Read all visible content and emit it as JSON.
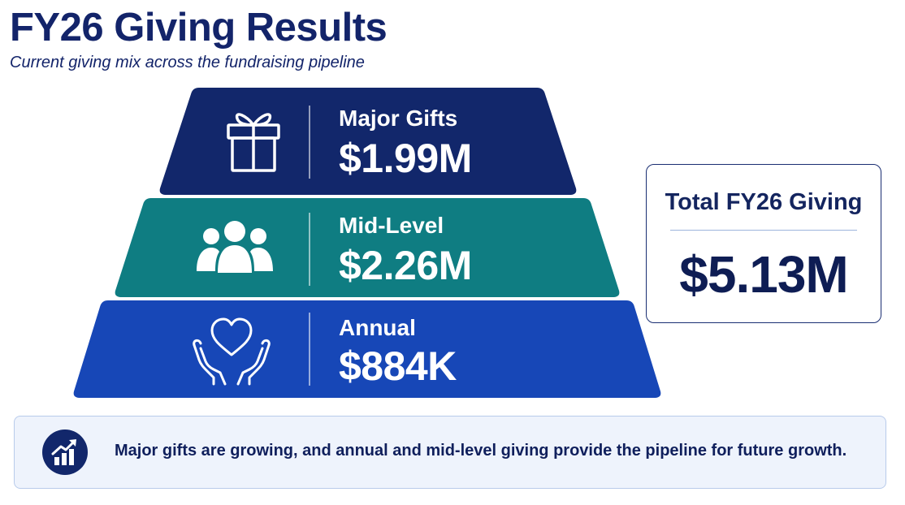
{
  "header": {
    "title": "FY26 Giving Results",
    "subtitle": "Current giving mix across the fundraising pipeline"
  },
  "pyramid": {
    "tiers": [
      {
        "label": "Major Gifts",
        "value": "$1.99M",
        "icon": "gift-icon",
        "color": "#12276b"
      },
      {
        "label": "Mid-Level",
        "value": "$2.26M",
        "icon": "people-icon",
        "color": "#0f7d82"
      },
      {
        "label": "Annual",
        "value": "$884K",
        "icon": "heart-hands-icon",
        "color": "#1747b7"
      }
    ]
  },
  "total": {
    "label": "Total FY26 Giving",
    "value": "$5.13M",
    "border_color": "#1a2e72"
  },
  "insight": {
    "icon": "growth-chart-icon",
    "text": "Major gifts are growing, and annual and mid-level giving provide the pipeline for future growth."
  }
}
